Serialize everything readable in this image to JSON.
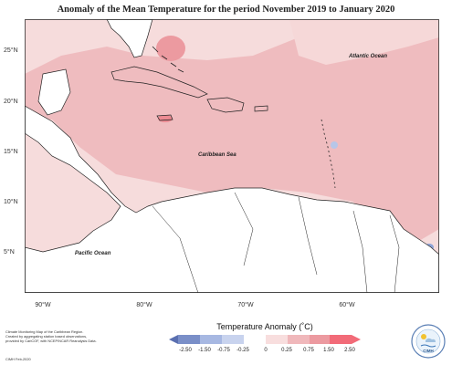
{
  "title": "Anomaly of the Mean Temperature for the period November 2019 to January 2020",
  "map_labels": {
    "atlantic": "Atlantic Ocean",
    "caribbean": "Caribbean Sea",
    "pacific": "Pacific Ocean"
  },
  "lat_ticks": [
    "25°N",
    "20°N",
    "15°N",
    "10°N",
    "5°N"
  ],
  "lon_ticks": [
    "90°W",
    "80°W",
    "70°W",
    "60°W"
  ],
  "colorbar": {
    "title": "Temperature Anomaly (˚C)",
    "labels": [
      "-2.50",
      "-1.50",
      "-0.75",
      "-0.25",
      "0",
      "0.25",
      "0.75",
      "1.50",
      "2.50"
    ],
    "colors": [
      "#5a6fb0",
      "#8fa3d6",
      "#b7c6e8",
      "#d8e0f2",
      "#ffffff",
      "#f8dede",
      "#f0b8bb",
      "#ec9aa0",
      "#f26b78"
    ]
  },
  "credit_lines": [
    "Climate Monitoring Map of the Caribbean Region.",
    "Created by aggregating station based observations,",
    "provided by CariCOF, with NCEP/NCAR Reanalysis Data."
  ],
  "credit_footer": "CIMH Feb-2020",
  "logo_text": "CIMH"
}
